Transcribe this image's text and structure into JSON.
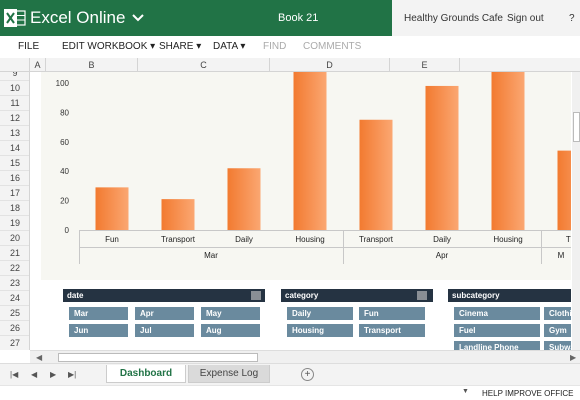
{
  "titlebar": {
    "app_name": "Excel Online",
    "book_name": "Book 21",
    "user_name": "Healthy Grounds Cafe",
    "signout": "Sign out",
    "help": "?",
    "logo_icon": "excel-logo-icon",
    "bg_color": "#217346"
  },
  "ribbon": {
    "file": "FILE",
    "edit_workbook": "EDIT WORKBOOK",
    "share": "SHARE",
    "data": "DATA",
    "find": "FIND",
    "comments": "COMMENTS",
    "dropdown_glyph": "▾"
  },
  "columns": [
    "A",
    "B",
    "C",
    "D",
    "E"
  ],
  "rows": [
    "9",
    "10",
    "11",
    "12",
    "13",
    "14",
    "15",
    "16",
    "17",
    "18",
    "19",
    "20",
    "21",
    "22",
    "23",
    "24",
    "25",
    "26",
    "27"
  ],
  "chart_data": {
    "type": "bar",
    "categories": [
      "Fun",
      "Transport",
      "Daily",
      "Housing",
      "Transport",
      "Daily",
      "Housing",
      "Tran"
    ],
    "groups": [
      {
        "label": "Mar",
        "start": 0,
        "end": 3
      },
      {
        "label": "Apr",
        "start": 4,
        "end": 6
      },
      {
        "label": "M",
        "start": 7,
        "end": 7
      }
    ],
    "values": [
      29,
      21,
      42,
      110,
      75,
      98,
      110,
      54
    ],
    "yticks": [
      0,
      20,
      40,
      60,
      80,
      100
    ],
    "ylim": [
      0,
      110
    ],
    "bar_color": "#f0813c",
    "grid": false
  },
  "slicers": {
    "date": {
      "title": "date",
      "items": [
        "Mar",
        "Apr",
        "May",
        "Jun",
        "Jul",
        "Aug"
      ]
    },
    "category": {
      "title": "category",
      "items": [
        "Daily",
        "Fun",
        "Housing",
        "Transport"
      ]
    },
    "subcategory": {
      "title": "subcategory",
      "items": [
        "Cinema",
        "Clothi",
        "Fuel",
        "Gym",
        "Landline Phone",
        "Subwa"
      ]
    },
    "clear_icon": "clear-filter-icon"
  },
  "sheet_tabs": {
    "active": "Dashboard",
    "inactive": "Expense Log",
    "add": "⊕"
  },
  "statusbar": {
    "help_improve": "HELP IMPROVE OFFICE"
  }
}
